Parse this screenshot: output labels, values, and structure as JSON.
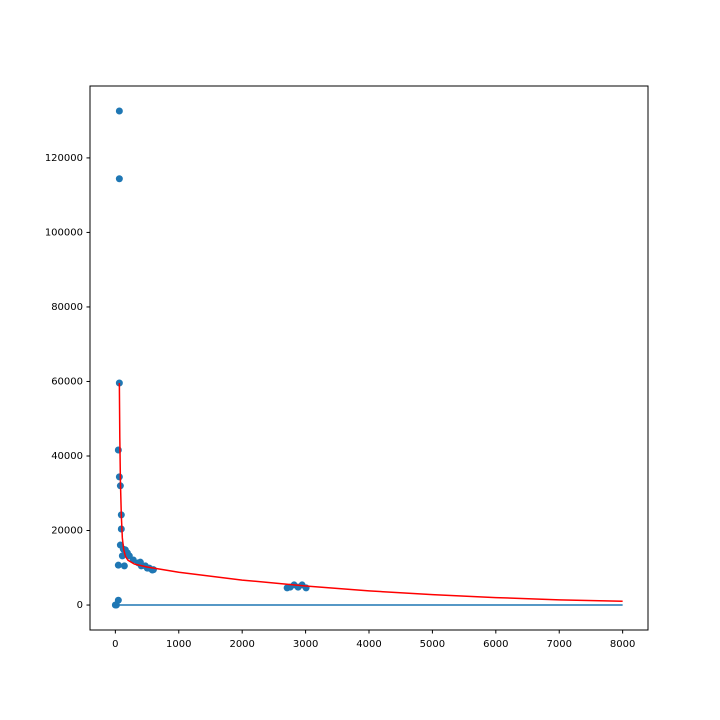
{
  "chart_data": {
    "type": "scatter",
    "xlim": [
      -400,
      8400
    ],
    "ylim": [
      -6700,
      139300
    ],
    "xticks": [
      0,
      1000,
      2000,
      3000,
      4000,
      5000,
      6000,
      7000,
      8000
    ],
    "yticks": [
      0,
      20000,
      40000,
      60000,
      80000,
      100000,
      120000
    ],
    "grid": false,
    "series": [
      {
        "type": "scatter",
        "color": "#1f77b4",
        "x": [
          63,
          63,
          63,
          47,
          63,
          79,
          94,
          94,
          79,
          126,
          47,
          110,
          157,
          189,
          142,
          220,
          283,
          362,
          409,
          472,
          535,
          394,
          504,
          583,
          600,
          47,
          16,
          0,
          2756,
          2819,
          2882,
          2945,
          3008,
          2709
        ],
        "values": [
          132600,
          114400,
          59600,
          41600,
          34400,
          32000,
          24200,
          20400,
          16100,
          15000,
          10700,
          13200,
          14800,
          14000,
          10500,
          13200,
          12100,
          11300,
          10500,
          10500,
          9900,
          11500,
          9900,
          9400,
          9500,
          1300,
          0,
          0,
          4800,
          5400,
          4800,
          5400,
          4600,
          4600
        ]
      },
      {
        "type": "line",
        "color": "#ff0000",
        "x": [
          63,
          70,
          80,
          94,
          110,
          130,
          160,
          200,
          300,
          500,
          1000,
          2000,
          3000,
          4000,
          5000,
          6000,
          7000,
          8000
        ],
        "values": [
          59600,
          45000,
          33000,
          24000,
          18000,
          15000,
          13000,
          12000,
          11000,
          10200,
          8800,
          6700,
          5100,
          3800,
          2800,
          2000,
          1400,
          1000
        ]
      },
      {
        "type": "line",
        "color": "#1f77b4",
        "x": [
          0,
          8000
        ],
        "values": [
          0,
          0
        ]
      }
    ]
  }
}
